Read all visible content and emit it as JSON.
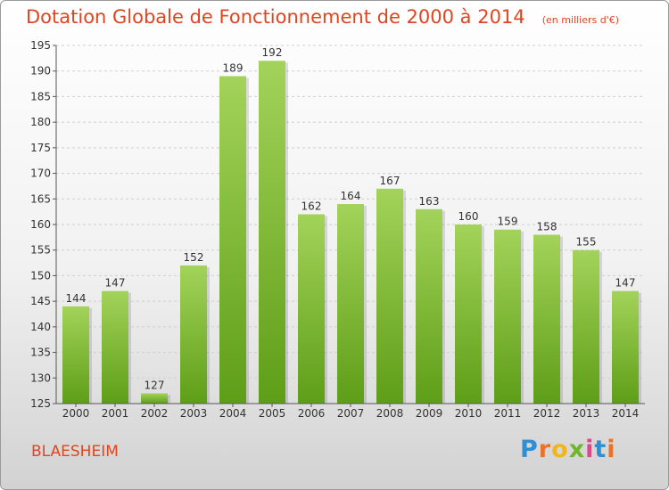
{
  "header": {
    "title": "Dotation Globale de Fonctionnement de 2000 à 2014",
    "subtitle": "(en milliers d'€)"
  },
  "footer": {
    "place": "BLAESHEIM",
    "logo": "Proxiti",
    "logo_colors": [
      "#2e8fd6",
      "#e8732a",
      "#f2b51d",
      "#6fb62c",
      "#d94a8c",
      "#2e8fd6",
      "#e8732a"
    ]
  },
  "colors": {
    "bar_top": "#a3d35a",
    "bar_bottom": "#5e9e17",
    "title": "#e0451f",
    "grid": "#cfcfcf",
    "axis_text": "#333333"
  },
  "chart_data": {
    "type": "bar",
    "title": "Dotation Globale de Fonctionnement de 2000 à 2014",
    "subtitle": "(en milliers d'€)",
    "xlabel": "",
    "ylabel": "",
    "categories": [
      "2000",
      "2001",
      "2002",
      "2003",
      "2004",
      "2005",
      "2006",
      "2007",
      "2008",
      "2009",
      "2010",
      "2011",
      "2012",
      "2013",
      "2014"
    ],
    "values": [
      144,
      147,
      127,
      152,
      189,
      192,
      162,
      164,
      167,
      163,
      160,
      159,
      158,
      155,
      147
    ],
    "ylim": [
      125,
      195
    ],
    "yticks": [
      125,
      130,
      135,
      140,
      145,
      150,
      155,
      160,
      165,
      170,
      175,
      180,
      185,
      190,
      195
    ],
    "grid": true,
    "legend": "none"
  }
}
